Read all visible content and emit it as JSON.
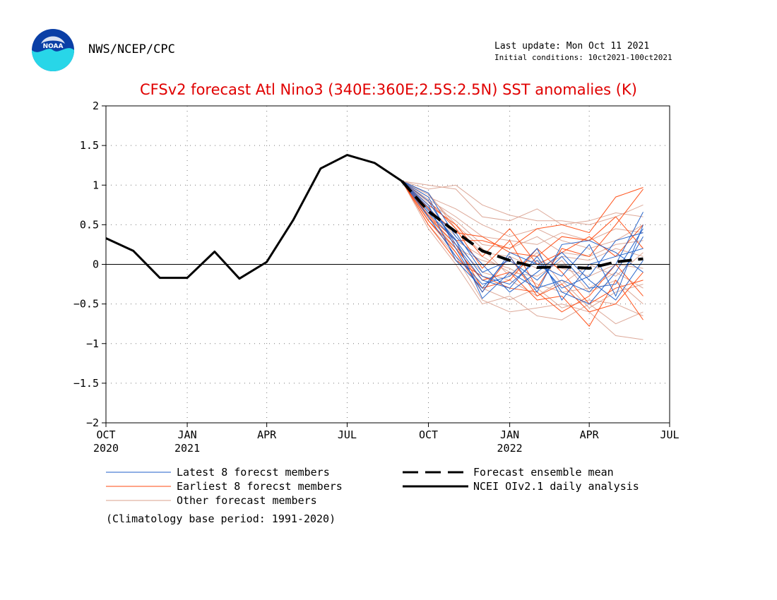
{
  "header": {
    "agency": "NWS/NCEP/CPC",
    "last_update": "Last update: Mon Oct 11 2021",
    "initial_conditions": "Initial conditions: 10ct2021-100ct2021",
    "logo_text": "NOAA"
  },
  "footnote": "(Climatology base period: 1991-2020)",
  "colors": {
    "title": "#e00000",
    "latest": "#1f5fc8",
    "earliest": "#ff4a10",
    "other": "#d9a08e",
    "observed": "#000000"
  },
  "chart_data": {
    "type": "line",
    "title": "CFSv2 forecast Atl Nino3 (340E:360E;2.5S:2.5N) SST anomalies (K)",
    "ylim": [
      -2,
      2
    ],
    "yticks": [
      "-2",
      "-1.5",
      "-1",
      "-0.5",
      "0",
      "0.5",
      "1",
      "1.5",
      "2"
    ],
    "xlim": [
      "2020-10-01",
      "2022-07-01"
    ],
    "xticks": [
      {
        "month": "OCT",
        "year": "2020"
      },
      {
        "month": "JAN",
        "year": "2021"
      },
      {
        "month": "APR",
        "year": ""
      },
      {
        "month": "JUL",
        "year": ""
      },
      {
        "month": "OCT",
        "year": ""
      },
      {
        "month": "JAN",
        "year": "2022"
      },
      {
        "month": "APR",
        "year": ""
      },
      {
        "month": "JUL",
        "year": ""
      }
    ],
    "grid": true,
    "legend": [
      {
        "label": "Latest 8 forecst members",
        "style": "thin",
        "color": "#1f5fc8"
      },
      {
        "label": "Earliest 8 forecst members",
        "style": "thin",
        "color": "#ff4a10"
      },
      {
        "label": "Other forecast members",
        "style": "thin",
        "color": "#d9a08e"
      },
      {
        "label": "Forecast ensemble mean",
        "style": "dashed",
        "color": "#000000"
      },
      {
        "label": "NCEI OIv2.1 daily analysis",
        "style": "solid",
        "color": "#000000"
      }
    ],
    "observed": {
      "name": "NCEI OIv2.1 daily analysis",
      "x": [
        "2020-10-01",
        "2020-11-01",
        "2020-12-01",
        "2021-01-01",
        "2021-02-01",
        "2021-03-01",
        "2021-04-01",
        "2021-05-01",
        "2021-06-01",
        "2021-07-01",
        "2021-08-01",
        "2021-09-01"
      ],
      "y": [
        0.33,
        0.17,
        -0.17,
        -0.17,
        0.16,
        -0.18,
        0.03,
        0.56,
        1.21,
        1.38,
        1.28,
        1.05
      ]
    },
    "ensemble_mean": {
      "name": "Forecast ensemble mean",
      "x": [
        "2021-09-01",
        "2021-10-01",
        "2021-11-01",
        "2021-12-01",
        "2022-01-01",
        "2022-02-01",
        "2022-03-01",
        "2022-04-01",
        "2022-05-01",
        "2022-06-01"
      ],
      "y": [
        1.05,
        0.67,
        0.41,
        0.17,
        0.05,
        -0.04,
        -0.03,
        -0.05,
        0.03,
        0.07
      ]
    },
    "members_x": [
      "2021-09-01",
      "2021-10-01",
      "2021-11-01",
      "2021-12-01",
      "2022-01-01",
      "2022-02-01",
      "2022-03-01",
      "2022-04-01",
      "2022-05-01",
      "2022-06-01"
    ],
    "members": [
      {
        "group": "latest",
        "y": [
          1.05,
          0.72,
          0.31,
          -0.43,
          -0.1,
          -0.3,
          -0.2,
          -0.35,
          0.0,
          0.66
        ]
      },
      {
        "group": "latest",
        "y": [
          1.05,
          0.8,
          0.25,
          -0.2,
          -0.3,
          0.1,
          -0.35,
          -0.5,
          -0.1,
          0.45
        ]
      },
      {
        "group": "latest",
        "y": [
          1.05,
          0.68,
          0.4,
          -0.1,
          0.05,
          -0.2,
          0.1,
          -0.3,
          -0.25,
          0.35
        ]
      },
      {
        "group": "latest",
        "y": [
          1.05,
          0.85,
          0.2,
          -0.35,
          0.15,
          0.0,
          -0.15,
          0.25,
          -0.4,
          0.5
        ]
      },
      {
        "group": "latest",
        "y": [
          1.05,
          0.6,
          0.1,
          -0.25,
          -0.15,
          0.2,
          -0.45,
          0.0,
          0.1,
          0.2
        ]
      },
      {
        "group": "latest",
        "y": [
          1.05,
          0.9,
          0.35,
          0.0,
          -0.35,
          -0.1,
          0.15,
          -0.2,
          -0.45,
          0.05
        ]
      },
      {
        "group": "latest",
        "y": [
          1.05,
          0.75,
          0.05,
          -0.3,
          0.1,
          -0.35,
          0.25,
          0.3,
          0.15,
          -0.1
        ]
      },
      {
        "group": "latest",
        "y": [
          1.05,
          0.65,
          0.3,
          -0.15,
          -0.25,
          0.05,
          -0.3,
          -0.15,
          0.3,
          0.4
        ]
      },
      {
        "group": "earliest",
        "y": [
          1.05,
          0.55,
          0.2,
          -0.2,
          -0.1,
          -0.45,
          -0.4,
          -0.78,
          -0.2,
          -0.7
        ]
      },
      {
        "group": "earliest",
        "y": [
          1.05,
          0.62,
          0.3,
          0.3,
          0.2,
          0.45,
          0.5,
          0.4,
          0.85,
          0.97
        ]
      },
      {
        "group": "earliest",
        "y": [
          1.05,
          0.8,
          0.45,
          -0.05,
          0.3,
          -0.3,
          0.2,
          0.1,
          0.5,
          0.95
        ]
      },
      {
        "group": "earliest",
        "y": [
          1.05,
          0.5,
          0.05,
          -0.15,
          -0.3,
          -0.35,
          -0.6,
          -0.4,
          0.0,
          -0.4
        ]
      },
      {
        "group": "earliest",
        "y": [
          1.05,
          0.7,
          0.4,
          0.35,
          0.15,
          0.1,
          0.35,
          0.3,
          0.6,
          0.2
        ]
      },
      {
        "group": "earliest",
        "y": [
          1.05,
          0.6,
          0.25,
          -0.3,
          -0.2,
          0.2,
          -0.1,
          -0.5,
          -0.3,
          -0.2
        ]
      },
      {
        "group": "earliest",
        "y": [
          1.05,
          0.75,
          0.5,
          0.1,
          0.45,
          0.0,
          0.15,
          0.35,
          0.1,
          0.5
        ]
      },
      {
        "group": "earliest",
        "y": [
          1.05,
          0.55,
          0.15,
          -0.35,
          0.1,
          -0.4,
          -0.25,
          -0.6,
          -0.5,
          -0.1
        ]
      },
      {
        "group": "other",
        "y": [
          1.05,
          0.95,
          1.0,
          0.75,
          0.62,
          0.55,
          0.55,
          0.5,
          0.6,
          0.75
        ]
      },
      {
        "group": "other",
        "y": [
          1.05,
          1.0,
          0.95,
          0.6,
          0.55,
          0.7,
          0.5,
          0.55,
          0.65,
          0.6
        ]
      },
      {
        "group": "other",
        "y": [
          1.05,
          0.85,
          0.7,
          0.5,
          0.35,
          0.45,
          0.3,
          0.2,
          0.3,
          0.5
        ]
      },
      {
        "group": "other",
        "y": [
          1.05,
          0.5,
          0.1,
          -0.45,
          -0.6,
          -0.55,
          -0.5,
          -0.6,
          -0.9,
          -0.95
        ]
      },
      {
        "group": "other",
        "y": [
          1.05,
          0.45,
          0.0,
          -0.5,
          -0.4,
          -0.65,
          -0.7,
          -0.5,
          -0.75,
          -0.6
        ]
      },
      {
        "group": "other",
        "y": [
          1.05,
          0.7,
          0.3,
          0.1,
          -0.1,
          -0.15,
          0.05,
          -0.35,
          -0.2,
          -0.5
        ]
      },
      {
        "group": "other",
        "y": [
          1.05,
          0.6,
          0.2,
          0.05,
          -0.05,
          -0.25,
          -0.35,
          -0.3,
          -0.1,
          -0.3
        ]
      },
      {
        "group": "other",
        "y": [
          1.05,
          0.78,
          0.55,
          0.25,
          0.2,
          0.35,
          0.15,
          0.1,
          0.25,
          0.3
        ]
      },
      {
        "group": "other",
        "y": [
          1.05,
          0.9,
          0.45,
          0.15,
          0.1,
          -0.05,
          0.1,
          0.05,
          0.2,
          0.1
        ]
      },
      {
        "group": "other",
        "y": [
          1.05,
          0.65,
          0.15,
          -0.3,
          -0.45,
          -0.3,
          -0.55,
          -0.45,
          -0.5,
          -0.65
        ]
      },
      {
        "group": "other",
        "y": [
          1.05,
          0.82,
          0.6,
          0.35,
          0.3,
          0.25,
          0.4,
          0.3,
          0.45,
          0.4
        ]
      },
      {
        "group": "other",
        "y": [
          1.05,
          0.58,
          0.25,
          -0.1,
          -0.2,
          -0.4,
          -0.2,
          -0.55,
          -0.35,
          -0.25
        ]
      },
      {
        "group": "other",
        "y": [
          1.05,
          0.72,
          0.35,
          0.0,
          0.0,
          0.05,
          -0.05,
          -0.15,
          0.0,
          -0.05
        ]
      },
      {
        "group": "other",
        "y": [
          1.05,
          0.88,
          0.5,
          0.2,
          -0.15,
          0.15,
          -0.25,
          0.0,
          -0.15,
          0.15
        ]
      }
    ]
  }
}
